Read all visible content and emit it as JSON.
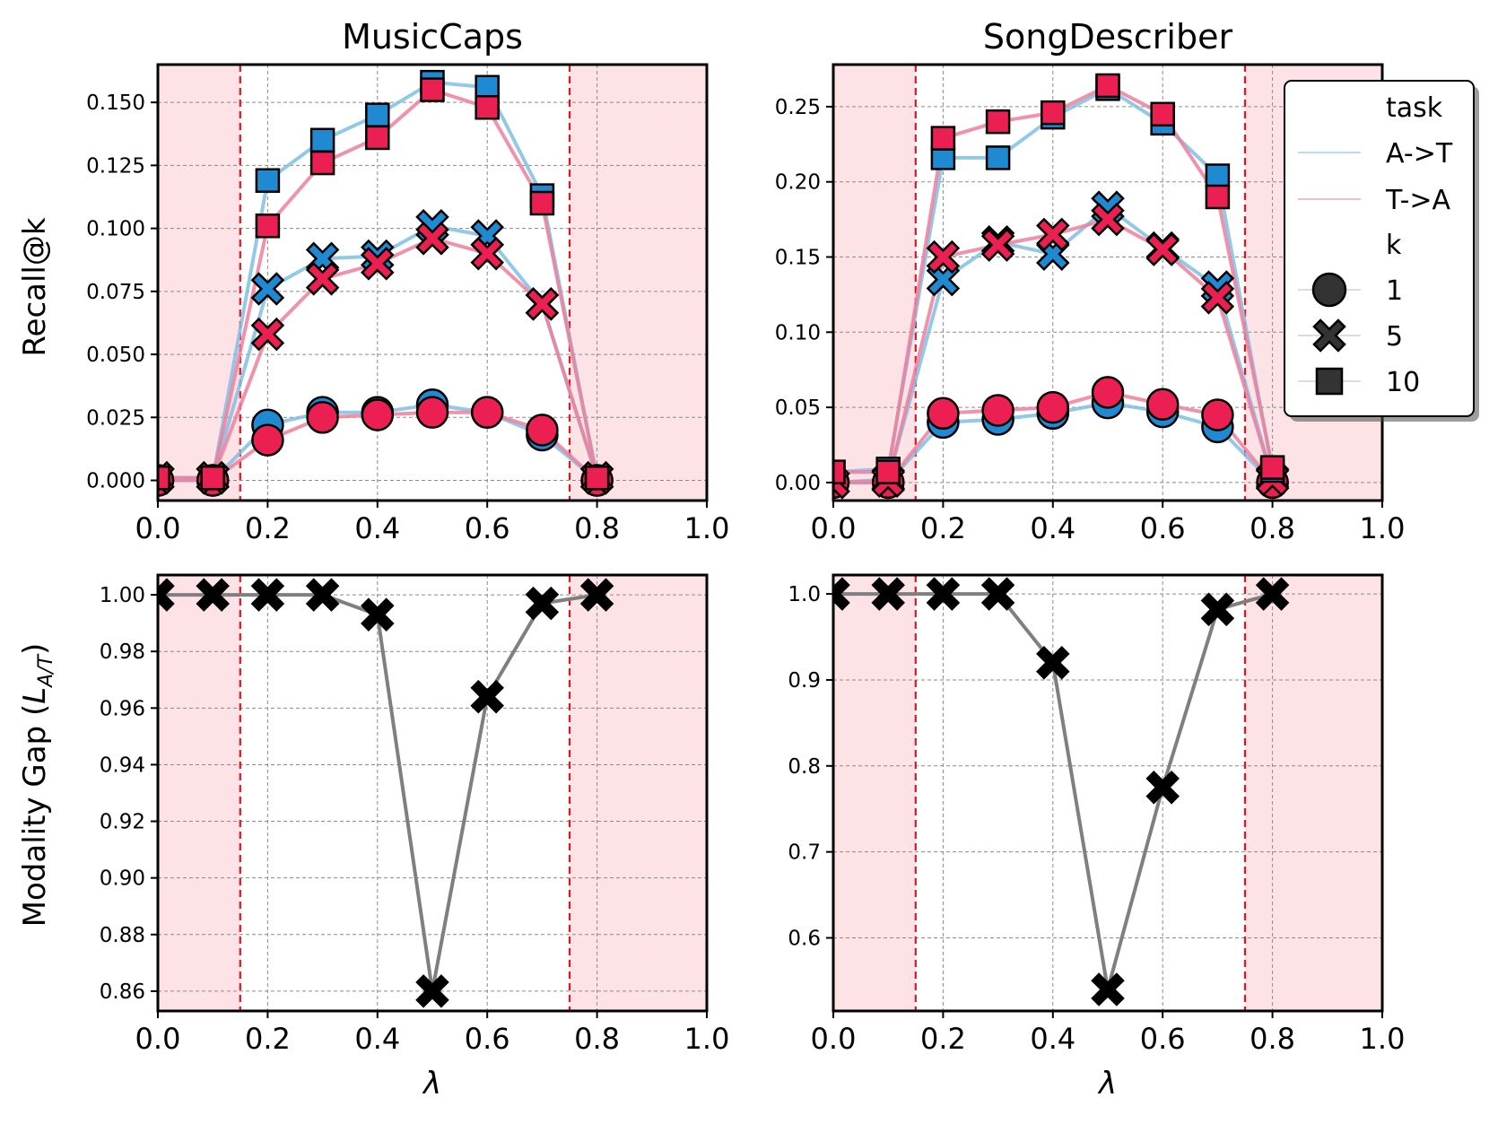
{
  "colors": {
    "a2t": "#1f8ad2",
    "a2t_line": "#7fbfe5",
    "t2a": "#ec1f52",
    "t2a_line": "#ee7f9c",
    "gap": "#000000",
    "gap_line": "#7f7f7f",
    "shade": "#fde3e6",
    "threshold": "#e8141c",
    "grid": "#8a8a8a"
  },
  "legend": {
    "task_title": "task",
    "task_a2t": "A->T",
    "task_t2a": "T->A",
    "k_title": "k",
    "k1": "1",
    "k5": "5",
    "k10": "10"
  },
  "chart_data": [
    {
      "type": "line",
      "title": "MusicCaps",
      "xlabel": "",
      "ylabel": "Recall@k",
      "xlim": [
        0.0,
        1.0
      ],
      "ylim": [
        -0.008,
        0.165
      ],
      "xticks": [
        "0.0",
        "0.2",
        "0.4",
        "0.6",
        "0.8",
        "1.0"
      ],
      "yticks": [
        "0.000",
        "0.025",
        "0.050",
        "0.075",
        "0.100",
        "0.125",
        "0.150"
      ],
      "shaded_regions": [
        [
          0.0,
          0.15
        ],
        [
          0.75,
          1.0
        ]
      ],
      "thresholds": [
        0.15,
        0.75
      ],
      "grid": true,
      "x": [
        0.0,
        0.1,
        0.2,
        0.3,
        0.4,
        0.5,
        0.6,
        0.7,
        0.8
      ],
      "series": [
        {
          "task": "A->T",
          "k": "1",
          "values": [
            0.0,
            0.0,
            0.022,
            0.027,
            0.027,
            0.03,
            0.027,
            0.018,
            0.0
          ]
        },
        {
          "task": "A->T",
          "k": "5",
          "values": [
            0.001,
            0.001,
            0.076,
            0.088,
            0.089,
            0.101,
            0.097,
            0.07,
            0.001
          ]
        },
        {
          "task": "A->T",
          "k": "10",
          "values": [
            0.001,
            0.001,
            0.119,
            0.135,
            0.145,
            0.158,
            0.156,
            0.113,
            0.001
          ]
        },
        {
          "task": "T->A",
          "k": "1",
          "values": [
            0.0,
            0.0,
            0.016,
            0.025,
            0.026,
            0.027,
            0.027,
            0.02,
            0.0
          ]
        },
        {
          "task": "T->A",
          "k": "5",
          "values": [
            0.001,
            0.001,
            0.058,
            0.08,
            0.086,
            0.096,
            0.09,
            0.07,
            0.001
          ]
        },
        {
          "task": "T->A",
          "k": "10",
          "values": [
            0.001,
            0.001,
            0.101,
            0.126,
            0.136,
            0.155,
            0.148,
            0.11,
            0.001
          ]
        }
      ]
    },
    {
      "type": "line",
      "title": "SongDescriber",
      "xlabel": "",
      "ylabel": "",
      "xlim": [
        0.0,
        1.0
      ],
      "ylim": [
        -0.012,
        0.278
      ],
      "xticks": [
        "0.0",
        "0.2",
        "0.4",
        "0.6",
        "0.8",
        "1.0"
      ],
      "yticks": [
        "0.00",
        "0.05",
        "0.10",
        "0.15",
        "0.20",
        "0.25"
      ],
      "shaded_regions": [
        [
          0.0,
          0.15
        ],
        [
          0.75,
          1.0
        ]
      ],
      "thresholds": [
        0.15,
        0.75
      ],
      "grid": true,
      "legend_position": "upper right",
      "x": [
        0.0,
        0.1,
        0.2,
        0.3,
        0.4,
        0.5,
        0.6,
        0.7,
        0.8
      ],
      "series": [
        {
          "task": "A->T",
          "k": "1",
          "values": [
            0.0,
            0.0,
            0.04,
            0.042,
            0.046,
            0.053,
            0.047,
            0.037,
            0.0
          ]
        },
        {
          "task": "A->T",
          "k": "5",
          "values": [
            0.0,
            0.002,
            0.135,
            0.16,
            0.152,
            0.183,
            0.156,
            0.13,
            0.003
          ]
        },
        {
          "task": "A->T",
          "k": "10",
          "values": [
            0.007,
            0.009,
            0.216,
            0.216,
            0.243,
            0.262,
            0.239,
            0.204,
            0.008
          ]
        },
        {
          "task": "T->A",
          "k": "1",
          "values": [
            0.0,
            0.0,
            0.046,
            0.048,
            0.05,
            0.06,
            0.052,
            0.045,
            0.0
          ]
        },
        {
          "task": "T->A",
          "k": "5",
          "values": [
            0.0,
            0.001,
            0.15,
            0.158,
            0.165,
            0.175,
            0.155,
            0.123,
            0.002
          ]
        },
        {
          "task": "T->A",
          "k": "10",
          "values": [
            0.007,
            0.007,
            0.229,
            0.24,
            0.246,
            0.264,
            0.245,
            0.19,
            0.01
          ]
        }
      ]
    },
    {
      "type": "line",
      "title": "",
      "xlabel": "λ",
      "ylabel": "Modality Gap (L_A/T)",
      "xlim": [
        0.0,
        1.0
      ],
      "ylim": [
        0.853,
        1.007
      ],
      "xticks": [
        "0.0",
        "0.2",
        "0.4",
        "0.6",
        "0.8",
        "1.0"
      ],
      "yticks": [
        "0.86",
        "0.88",
        "0.90",
        "0.92",
        "0.94",
        "0.96",
        "0.98",
        "1.00"
      ],
      "shaded_regions": [
        [
          0.0,
          0.15
        ],
        [
          0.75,
          1.0
        ]
      ],
      "thresholds": [
        0.15,
        0.75
      ],
      "grid": true,
      "x": [
        0.0,
        0.1,
        0.2,
        0.3,
        0.4,
        0.5,
        0.6,
        0.7,
        0.8
      ],
      "values": [
        1.0,
        1.0,
        1.0,
        1.0,
        0.993,
        0.86,
        0.964,
        0.997,
        1.0
      ]
    },
    {
      "type": "line",
      "title": "",
      "xlabel": "λ",
      "ylabel": "",
      "xlim": [
        0.0,
        1.0
      ],
      "ylim": [
        0.515,
        1.022
      ],
      "xticks": [
        "0.0",
        "0.2",
        "0.4",
        "0.6",
        "0.8",
        "1.0"
      ],
      "yticks": [
        "0.6",
        "0.7",
        "0.8",
        "0.9",
        "1.0"
      ],
      "shaded_regions": [
        [
          0.0,
          0.15
        ],
        [
          0.75,
          1.0
        ]
      ],
      "thresholds": [
        0.15,
        0.75
      ],
      "grid": true,
      "x": [
        0.0,
        0.1,
        0.2,
        0.3,
        0.4,
        0.5,
        0.6,
        0.7,
        0.8
      ],
      "values": [
        1.0,
        1.0,
        1.0,
        1.0,
        0.92,
        0.54,
        0.775,
        0.982,
        1.0
      ]
    }
  ]
}
